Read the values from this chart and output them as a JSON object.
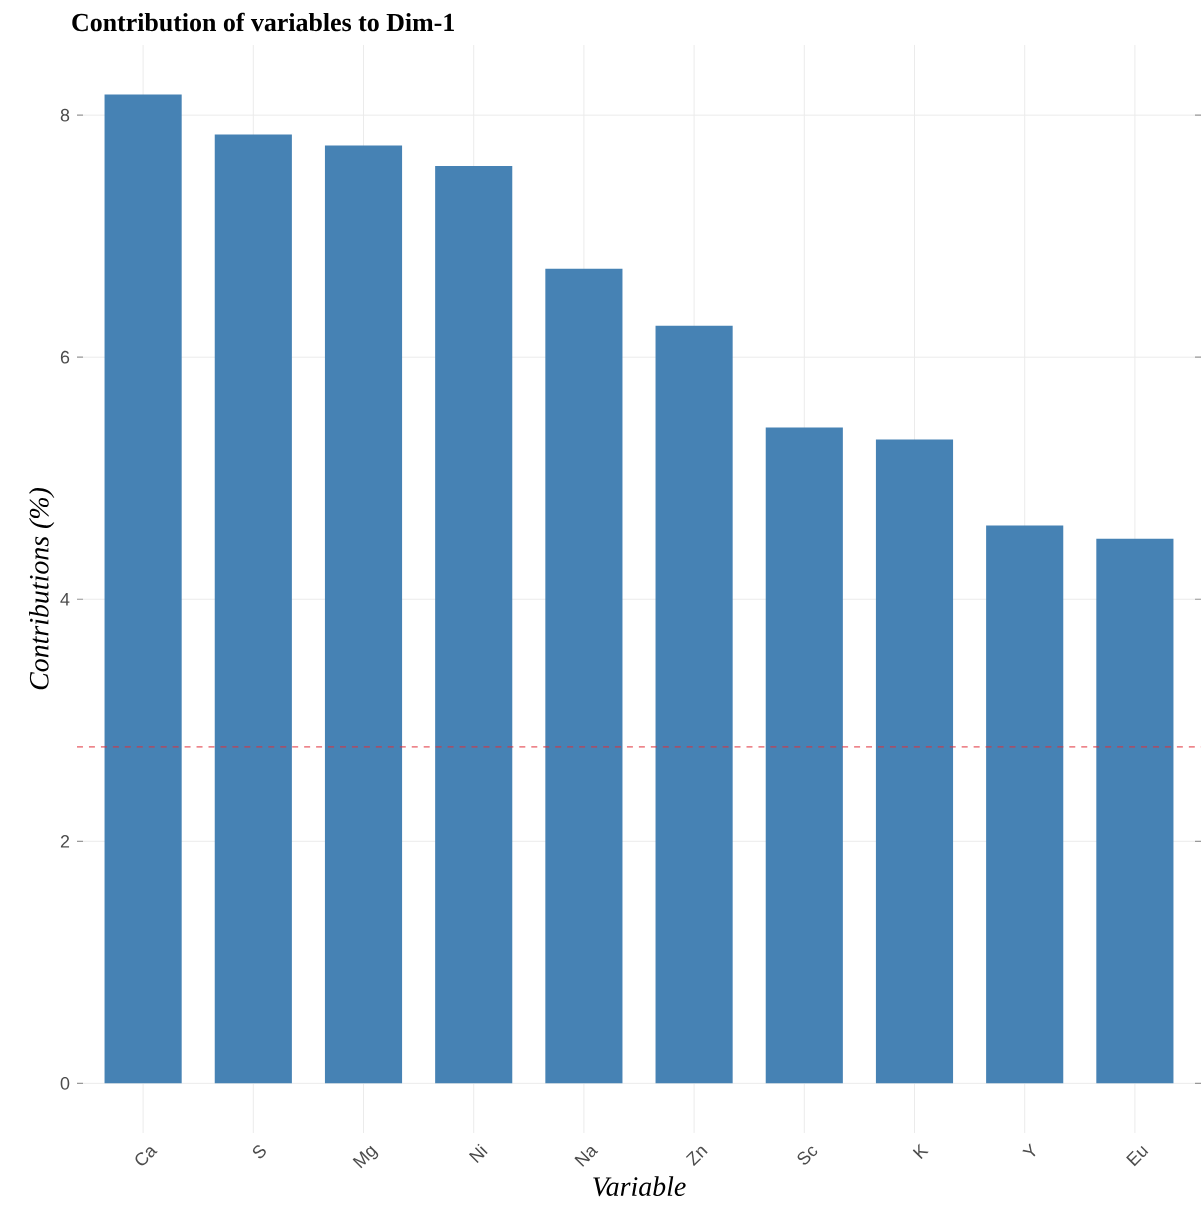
{
  "chart_data": {
    "type": "bar",
    "title": "Contribution of variables to Dim-1",
    "xlabel": "Variable",
    "ylabel": "Contributions (%)",
    "categories": [
      "Ca",
      "S",
      "Mg",
      "Ni",
      "Na",
      "Zn",
      "Sc",
      "K",
      "Y",
      "Eu"
    ],
    "values": [
      8.17,
      7.84,
      7.75,
      7.58,
      6.73,
      6.26,
      5.42,
      5.32,
      4.61,
      4.5
    ],
    "color": "#4682b4",
    "ylim": [
      -0.41,
      8.58
    ],
    "yticks": [
      0,
      2,
      4,
      6,
      8
    ],
    "grid": true,
    "ref_lines": [
      {
        "axis": "y",
        "value": 2.78,
        "color": "#e0303a",
        "line_style": "dashed"
      }
    ]
  }
}
